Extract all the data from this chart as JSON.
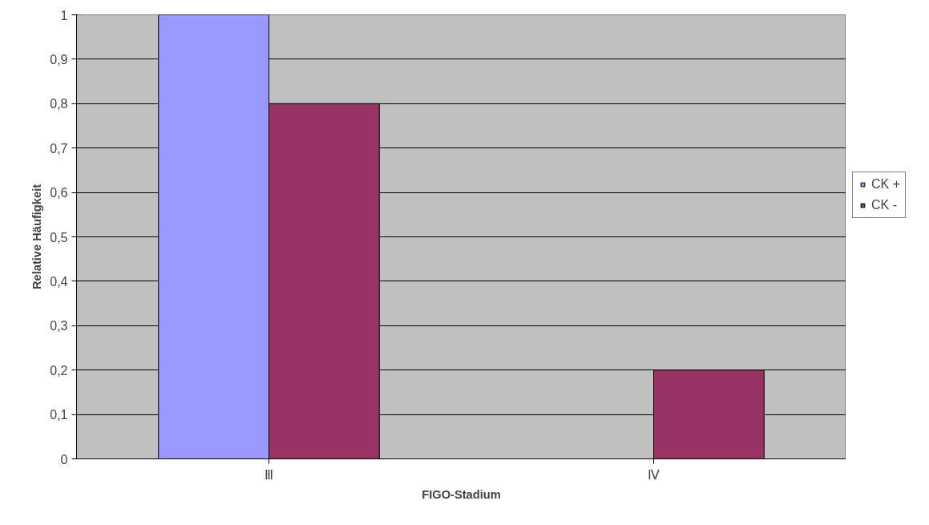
{
  "chart_data": {
    "type": "bar",
    "xlabel": "FIGO-Stadium",
    "ylabel": "Relative Häufigkeit",
    "categories": [
      "Ⅲ",
      "Ⅳ"
    ],
    "series": [
      {
        "name": "CK +",
        "color": "#9999ff",
        "values": [
          1,
          null
        ]
      },
      {
        "name": "CK -",
        "color": "#993366",
        "values": [
          0.8,
          0.2
        ]
      }
    ],
    "ylim": [
      0,
      1
    ],
    "yticks": [
      0,
      {
        "value": 0.1,
        "label": "0,1"
      },
      {
        "value": 0.2,
        "label": "0,2"
      },
      {
        "value": 0.3,
        "label": "0,3"
      },
      {
        "value": 0.4,
        "label": "0,4"
      },
      {
        "value": 0.5,
        "label": "0,5"
      },
      {
        "value": 0.6,
        "label": "0,6"
      },
      {
        "value": 0.7,
        "label": "0,7"
      },
      {
        "value": 0.8,
        "label": "0,8"
      },
      {
        "value": 0.9,
        "label": "0,9"
      },
      1
    ],
    "grid": "y",
    "legend": "right"
  }
}
